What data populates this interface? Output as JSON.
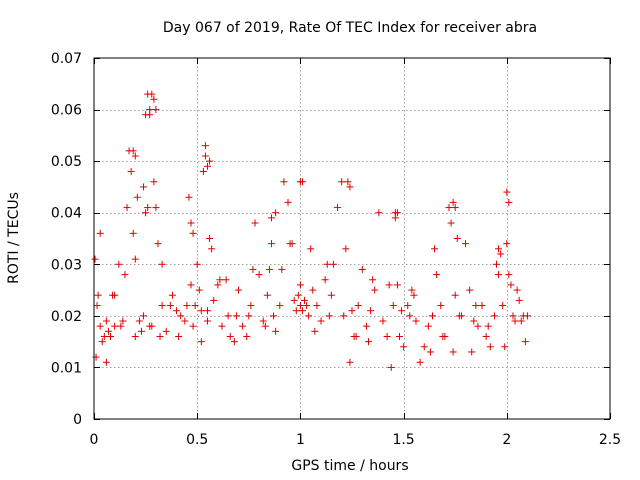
{
  "chart_data": {
    "type": "scatter",
    "title": "Day 067 of 2019, Rate Of TEC Index for receiver abra",
    "xlabel": "GPS time / hours",
    "ylabel": "ROTI / TECUs",
    "xlim": [
      0,
      2.5
    ],
    "ylim": [
      0,
      0.07
    ],
    "xticks": [
      0,
      0.5,
      1,
      1.5,
      2,
      2.5
    ],
    "xtick_labels": [
      "0",
      "0.5",
      "1",
      "1.5",
      "2",
      "2.5"
    ],
    "yticks": [
      0,
      0.01,
      0.02,
      0.03,
      0.04,
      0.05,
      0.06,
      0.07
    ],
    "ytick_labels": [
      "0",
      "0.01",
      "0.02",
      "0.03",
      "0.04",
      "0.05",
      "0.06",
      "0.07"
    ],
    "grid": true,
    "marker": "+",
    "color": "#e00000",
    "series": [
      {
        "name": "abra",
        "x": [
          0.005,
          0.01,
          0.015,
          0.02,
          0.03,
          0.04,
          0.05,
          0.06,
          0.07,
          0.08,
          0.09,
          0.1,
          0.12,
          0.14,
          0.15,
          0.16,
          0.17,
          0.18,
          0.19,
          0.2,
          0.21,
          0.22,
          0.23,
          0.24,
          0.25,
          0.26,
          0.27,
          0.28,
          0.29,
          0.3,
          0.31,
          0.32,
          0.33,
          0.35,
          0.37,
          0.38,
          0.4,
          0.42,
          0.44,
          0.45,
          0.46,
          0.47,
          0.48,
          0.49,
          0.5,
          0.51,
          0.52,
          0.53,
          0.54,
          0.55,
          0.56,
          0.57,
          0.58,
          0.6,
          0.62,
          0.64,
          0.65,
          0.66,
          0.68,
          0.7,
          0.72,
          0.74,
          0.75,
          0.76,
          0.78,
          0.8,
          0.82,
          0.84,
          0.85,
          0.86,
          0.87,
          0.88,
          0.9,
          0.92,
          0.94,
          0.95,
          0.96,
          0.97,
          0.98,
          0.99,
          1.0,
          1.01,
          1.02,
          1.03,
          1.04,
          1.05,
          1.06,
          1.08,
          1.1,
          1.12,
          1.14,
          1.15,
          1.16,
          1.18,
          1.2,
          1.22,
          1.24,
          1.25,
          1.26,
          1.28,
          1.3,
          1.32,
          1.34,
          1.35,
          1.36,
          1.38,
          1.4,
          1.42,
          1.44,
          1.45,
          1.46,
          1.47,
          1.48,
          1.5,
          1.52,
          1.54,
          1.55,
          1.56,
          1.58,
          1.6,
          1.62,
          1.64,
          1.65,
          1.66,
          1.68,
          1.7,
          1.72,
          1.73,
          1.74,
          1.75,
          1.76,
          1.78,
          1.8,
          1.82,
          1.84,
          1.85,
          1.86,
          1.88,
          1.9,
          1.92,
          1.94,
          1.95,
          1.96,
          1.98,
          2.0,
          2.01,
          2.02,
          2.04,
          2.05,
          2.06,
          2.07,
          2.08,
          2.09,
          2.1,
          0.03,
          0.06,
          0.1,
          0.13,
          0.2,
          0.24,
          0.27,
          0.33,
          0.41,
          0.52,
          0.55,
          0.61,
          0.69,
          0.77,
          0.83,
          0.91,
          1.0,
          1.07,
          1.13,
          1.21,
          1.27,
          1.33,
          1.43,
          1.49,
          1.53,
          1.63,
          1.69,
          1.77,
          1.83,
          1.91,
          1.99,
          2.03,
          0.28,
          0.29,
          0.3,
          0.27,
          0.19,
          0.2,
          0.54,
          0.55,
          0.56,
          1.0,
          1.01,
          1.23,
          1.24,
          1.74,
          1.75,
          2.0,
          2.01,
          0.47,
          0.48,
          0.86,
          0.88,
          1.46,
          1.47,
          0.25,
          0.26,
          1.96,
          1.97
        ],
        "y": [
          0.031,
          0.012,
          0.022,
          0.024,
          0.018,
          0.015,
          0.016,
          0.019,
          0.017,
          0.016,
          0.024,
          0.018,
          0.03,
          0.019,
          0.028,
          0.041,
          0.052,
          0.048,
          0.036,
          0.031,
          0.043,
          0.019,
          0.017,
          0.045,
          0.059,
          0.063,
          0.06,
          0.018,
          0.046,
          0.041,
          0.034,
          0.016,
          0.022,
          0.017,
          0.022,
          0.024,
          0.021,
          0.02,
          0.019,
          0.022,
          0.043,
          0.026,
          0.018,
          0.022,
          0.03,
          0.025,
          0.021,
          0.048,
          0.051,
          0.019,
          0.035,
          0.033,
          0.023,
          0.026,
          0.018,
          0.027,
          0.02,
          0.016,
          0.015,
          0.025,
          0.018,
          0.016,
          0.02,
          0.022,
          0.038,
          0.028,
          0.019,
          0.024,
          0.029,
          0.034,
          0.02,
          0.017,
          0.022,
          0.046,
          0.042,
          0.034,
          0.034,
          0.023,
          0.021,
          0.024,
          0.026,
          0.021,
          0.023,
          0.022,
          0.02,
          0.033,
          0.025,
          0.022,
          0.019,
          0.027,
          0.02,
          0.024,
          0.03,
          0.041,
          0.046,
          0.033,
          0.011,
          0.021,
          0.016,
          0.022,
          0.029,
          0.018,
          0.021,
          0.027,
          0.025,
          0.04,
          0.019,
          0.016,
          0.01,
          0.022,
          0.04,
          0.026,
          0.016,
          0.014,
          0.022,
          0.025,
          0.024,
          0.019,
          0.011,
          0.014,
          0.018,
          0.02,
          0.033,
          0.028,
          0.022,
          0.016,
          0.041,
          0.038,
          0.013,
          0.024,
          0.035,
          0.02,
          0.034,
          0.025,
          0.019,
          0.022,
          0.018,
          0.022,
          0.016,
          0.014,
          0.02,
          0.03,
          0.028,
          0.022,
          0.034,
          0.028,
          0.026,
          0.019,
          0.025,
          0.023,
          0.019,
          0.02,
          0.015,
          0.02,
          0.036,
          0.011,
          0.024,
          0.018,
          0.016,
          0.02,
          0.018,
          0.03,
          0.016,
          0.015,
          0.021,
          0.027,
          0.02,
          0.029,
          0.018,
          0.029,
          0.022,
          0.017,
          0.03,
          0.02,
          0.016,
          0.015,
          0.026,
          0.021,
          0.02,
          0.013,
          0.016,
          0.02,
          0.013,
          0.018,
          0.014,
          0.02,
          0.063,
          0.062,
          0.06,
          0.059,
          0.052,
          0.051,
          0.053,
          0.049,
          0.05,
          0.046,
          0.046,
          0.046,
          0.045,
          0.042,
          0.041,
          0.044,
          0.042,
          0.038,
          0.036,
          0.039,
          0.04,
          0.039,
          0.04,
          0.04,
          0.041,
          0.033,
          0.032
        ]
      }
    ]
  }
}
